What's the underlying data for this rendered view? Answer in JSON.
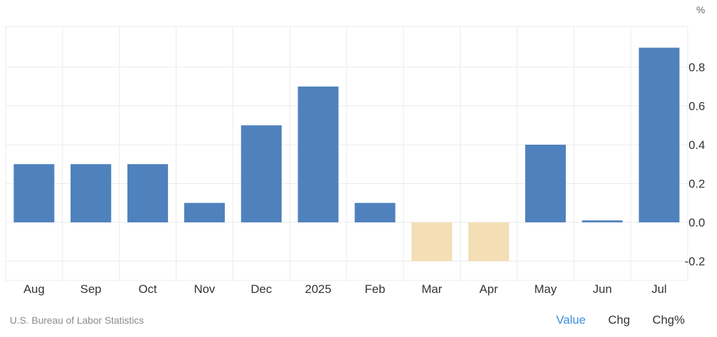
{
  "chart_data": {
    "type": "bar",
    "unit_label": "%",
    "categories": [
      "Aug",
      "Sep",
      "Oct",
      "Nov",
      "Dec",
      "2025",
      "Feb",
      "Mar",
      "Apr",
      "May",
      "Jun",
      "Jul"
    ],
    "values": [
      0.3,
      0.3,
      0.3,
      0.1,
      0.5,
      0.7,
      0.1,
      -0.2,
      -0.2,
      0.4,
      0.01,
      0.9
    ],
    "yticks": [
      0.8,
      0.6,
      0.4,
      0.2,
      0.0,
      -0.2
    ],
    "ytick_labels": [
      "0.8",
      "0.6",
      "0.4",
      "0.2",
      "0.0",
      "-0.2"
    ],
    "ylim": [
      -0.3,
      1.0
    ],
    "grid": true,
    "colors": {
      "positive": "#4f81bd",
      "negative": "#f3deb5",
      "grid": "#ebebeb"
    }
  },
  "footer": {
    "source": "U.S. Bureau of Labor Statistics",
    "tabs": [
      {
        "label": "Value",
        "active": true
      },
      {
        "label": "Chg",
        "active": false
      },
      {
        "label": "Chg%",
        "active": false
      }
    ]
  }
}
